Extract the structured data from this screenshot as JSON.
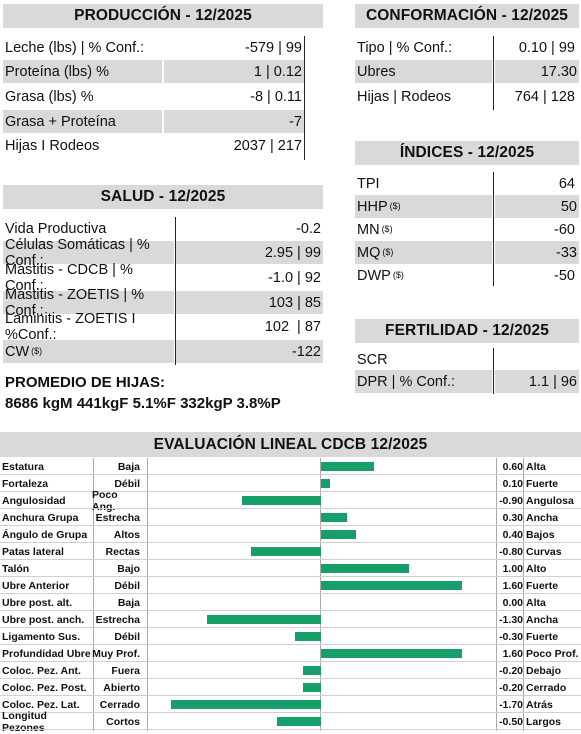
{
  "produccion": {
    "title": "PRODUCCIÓN - 12/2025",
    "rows": [
      {
        "label": "Leche (lbs) | % Conf.:",
        "value": "-579 | 99"
      },
      {
        "label": "Proteína (lbs) %",
        "value": "1 | 0.12"
      },
      {
        "label": "Grasa (lbs) %",
        "value": "-8 | 0.11"
      },
      {
        "label": "Grasa + Proteína",
        "value": "-7"
      },
      {
        "label": "Hijas I Rodeos",
        "value": "2037 | 217"
      }
    ]
  },
  "conformacion": {
    "title": "CONFORMACIÓN - 12/2025",
    "rows": [
      {
        "label": "Tipo | % Conf.:",
        "value": "0.10 | 99"
      },
      {
        "label": "Ubres",
        "value": "17.30"
      },
      {
        "label": "Hijas | Rodeos",
        "value": "764 | 128"
      }
    ]
  },
  "indices": {
    "title": "ÍNDICES - 12/2025",
    "rows": [
      {
        "label": "TPI",
        "sup": "",
        "value": "64"
      },
      {
        "label": "HHP",
        "sup": "($)",
        "value": "50"
      },
      {
        "label": "MN",
        "sup": "($)",
        "value": "-60"
      },
      {
        "label": "MQ",
        "sup": "($)",
        "value": "-33"
      },
      {
        "label": "DWP",
        "sup": "($)",
        "value": "-50"
      }
    ]
  },
  "salud": {
    "title": "SALUD - 12/2025",
    "rows": [
      {
        "label": "Vida Productiva",
        "sup": "",
        "value": "-0.2"
      },
      {
        "label": "Células Somáticas | % Conf.:",
        "sup": "",
        "value": "2.95 | 99"
      },
      {
        "label": "Mastitis - CDCB | % Conf.:",
        "sup": "",
        "value": "-1.0 | 92"
      },
      {
        "label": "Mastitis - ZOETIS | % Conf.:",
        "sup": "",
        "value": "103 | 85"
      },
      {
        "label": "Laminitis - ZOETIS I %Conf.:",
        "sup": "",
        "value": "102  | 87"
      },
      {
        "label": "CW",
        "sup": "($)",
        "value": "-122"
      }
    ]
  },
  "fertilidad": {
    "title": "FERTILIDAD - 12/2025",
    "rows": [
      {
        "label": "SCR",
        "value": ""
      },
      {
        "label": "DPR | % Conf.:",
        "value": "1.1 | 96"
      }
    ]
  },
  "promedio": {
    "title": "PROMEDIO DE HIJAS:",
    "text": "8686 kgM 441kgF 5.1%F 332kgP 3.8%P"
  },
  "lineal": {
    "title": "EVALUACIÓN LINEAL CDCB 12/2025",
    "bar_color": "#169f6b",
    "scale_max": 2.0,
    "rows": [
      {
        "name": "Estatura",
        "low": "Baja",
        "value": 0.6,
        "num": "0.60",
        "high": "Alta"
      },
      {
        "name": "Fortaleza",
        "low": "Débil",
        "value": 0.1,
        "num": "0.10",
        "high": "Fuerte"
      },
      {
        "name": "Angulosidad",
        "low": "Poco Ang.",
        "value": -0.9,
        "num": "-0.90",
        "high": "Angulosa"
      },
      {
        "name": "Anchura Grupa",
        "low": "Estrecha",
        "value": 0.3,
        "num": "0.30",
        "high": "Ancha"
      },
      {
        "name": "Ángulo de Grupa",
        "low": "Altos",
        "value": 0.4,
        "num": "0.40",
        "high": "Bajos"
      },
      {
        "name": "Patas lateral",
        "low": "Rectas",
        "value": -0.8,
        "num": "-0.80",
        "high": "Curvas"
      },
      {
        "name": "Talón",
        "low": "Bajo",
        "value": 1.0,
        "num": "1.00",
        "high": "Alto"
      },
      {
        "name": "Ubre Anterior",
        "low": "Débil",
        "value": 1.6,
        "num": "1.60",
        "high": "Fuerte"
      },
      {
        "name": "Ubre post. alt.",
        "low": "Baja",
        "value": 0.0,
        "num": "0.00",
        "high": "Alta"
      },
      {
        "name": "Ubre post. anch.",
        "low": "Estrecha",
        "value": -1.3,
        "num": "-1.30",
        "high": "Ancha"
      },
      {
        "name": "Ligamento Sus.",
        "low": "Débil",
        "value": -0.3,
        "num": "-0.30",
        "high": "Fuerte"
      },
      {
        "name": "Profundidad Ubre",
        "low": "Muy Prof.",
        "value": 1.6,
        "num": "1.60",
        "high": "Poco Prof."
      },
      {
        "name": "Coloc. Pez. Ant.",
        "low": "Fuera",
        "value": -0.2,
        "num": "-0.20",
        "high": "Debajo"
      },
      {
        "name": "Coloc. Pez. Post.",
        "low": "Abierto",
        "value": -0.2,
        "num": "-0.20",
        "high": "Cerrado"
      },
      {
        "name": "Coloc. Pez. Lat.",
        "low": "Cerrado",
        "value": -1.7,
        "num": "-1.70",
        "high": "Atrás"
      },
      {
        "name": "Longitud Pezones",
        "low": "Cortos",
        "value": -0.5,
        "num": "-0.50",
        "high": "Largos"
      }
    ]
  }
}
